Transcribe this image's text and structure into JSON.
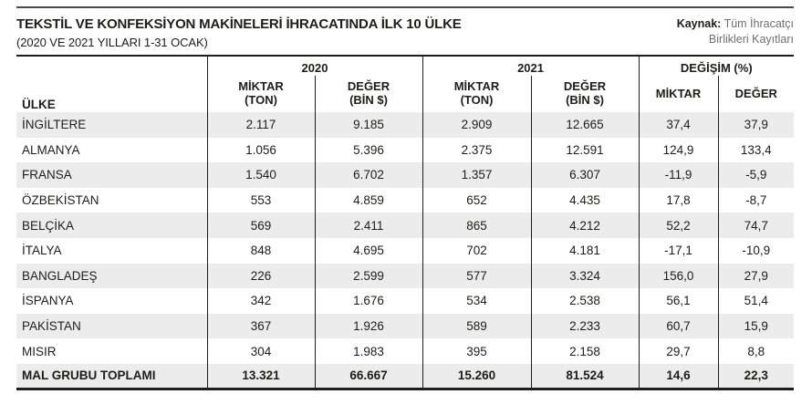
{
  "page": {
    "title": "TEKSTİL VE KONFEKSİYON MAKİNELERİ İHRACATINDA İLK 10 ÜLKE",
    "subtitle": "(2020 VE 2021 YILLARI 1-31 OCAK)",
    "source_label": "Kaynak:",
    "source_text": "Tüm İhracatçı\nBirlikleri Kayıtları"
  },
  "colors": {
    "row_shade": "#ececec",
    "line_color": "#1d1d1b",
    "source_gray": "#6f6f6f"
  },
  "chart_data": {
    "type": "table",
    "title": "TEKSTİL VE KONFEKSİYON MAKİNELERİ İHRACATINDA İLK 10 ÜLKE",
    "subtitle": "(2020 VE 2021 YILLARI 1-31 OCAK)",
    "source": "Kaynak: Tüm İhracatçı Birlikleri Kayıtları",
    "header": {
      "country": "ÜLKE",
      "groups": [
        {
          "label": "2020",
          "sub1": "MİKTAR\n(TON)",
          "sub2": "DEĞER\n(BİN $)"
        },
        {
          "label": "2021",
          "sub1": "MİKTAR\n(TON)",
          "sub2": "DEĞER\n(BİN $)"
        },
        {
          "label": "DEĞİŞİM (%)",
          "sub1": "MİKTAR",
          "sub2": "DEĞER"
        }
      ],
      "columns": [
        "ÜLKE",
        "2020 MİKTAR (TON)",
        "2020 DEĞER (BİN $)",
        "2021 MİKTAR (TON)",
        "2021 DEĞER (BİN $)",
        "DEĞİŞİM (%) MİKTAR",
        "DEĞİŞİM (%) DEĞER"
      ]
    },
    "rows": [
      {
        "country": "İNGİLTERE",
        "values": [
          "2.117",
          "9.185",
          "2.909",
          "12.665",
          "37,4",
          "37,9"
        ],
        "total": false
      },
      {
        "country": "ALMANYA",
        "values": [
          "1.056",
          "5.396",
          "2.375",
          "12.591",
          "124,9",
          "133,4"
        ],
        "total": false
      },
      {
        "country": "FRANSA",
        "values": [
          "1.540",
          "6.702",
          "1.357",
          "6.307",
          "-11,9",
          "-5,9"
        ],
        "total": false
      },
      {
        "country": "ÖZBEKİSTAN",
        "values": [
          "553",
          "4.859",
          "652",
          "4.435",
          "17,8",
          "-8,7"
        ],
        "total": false
      },
      {
        "country": "BELÇİKA",
        "values": [
          "569",
          "2.411",
          "865",
          "4.212",
          "52,2",
          "74,7"
        ],
        "total": false
      },
      {
        "country": "İTALYA",
        "values": [
          "848",
          "4.695",
          "702",
          "4.181",
          "-17,1",
          "-10,9"
        ],
        "total": false
      },
      {
        "country": "BANGLADEŞ",
        "values": [
          "226",
          "2.599",
          "577",
          "3.324",
          "156,0",
          "27,9"
        ],
        "total": false
      },
      {
        "country": "İSPANYA",
        "values": [
          "342",
          "1.676",
          "534",
          "2.538",
          "56,1",
          "51,4"
        ],
        "total": false
      },
      {
        "country": "PAKİSTAN",
        "values": [
          "367",
          "1.926",
          "589",
          "2.233",
          "60,7",
          "15,9"
        ],
        "total": false
      },
      {
        "country": "MISIR",
        "values": [
          "304",
          "1.983",
          "395",
          "2.158",
          "29,7",
          "8,8"
        ],
        "total": false
      },
      {
        "country": "MAL GRUBU TOPLAMI",
        "values": [
          "13.321",
          "66.667",
          "15.260",
          "81.524",
          "14,6",
          "22,3"
        ],
        "total": true
      }
    ]
  }
}
